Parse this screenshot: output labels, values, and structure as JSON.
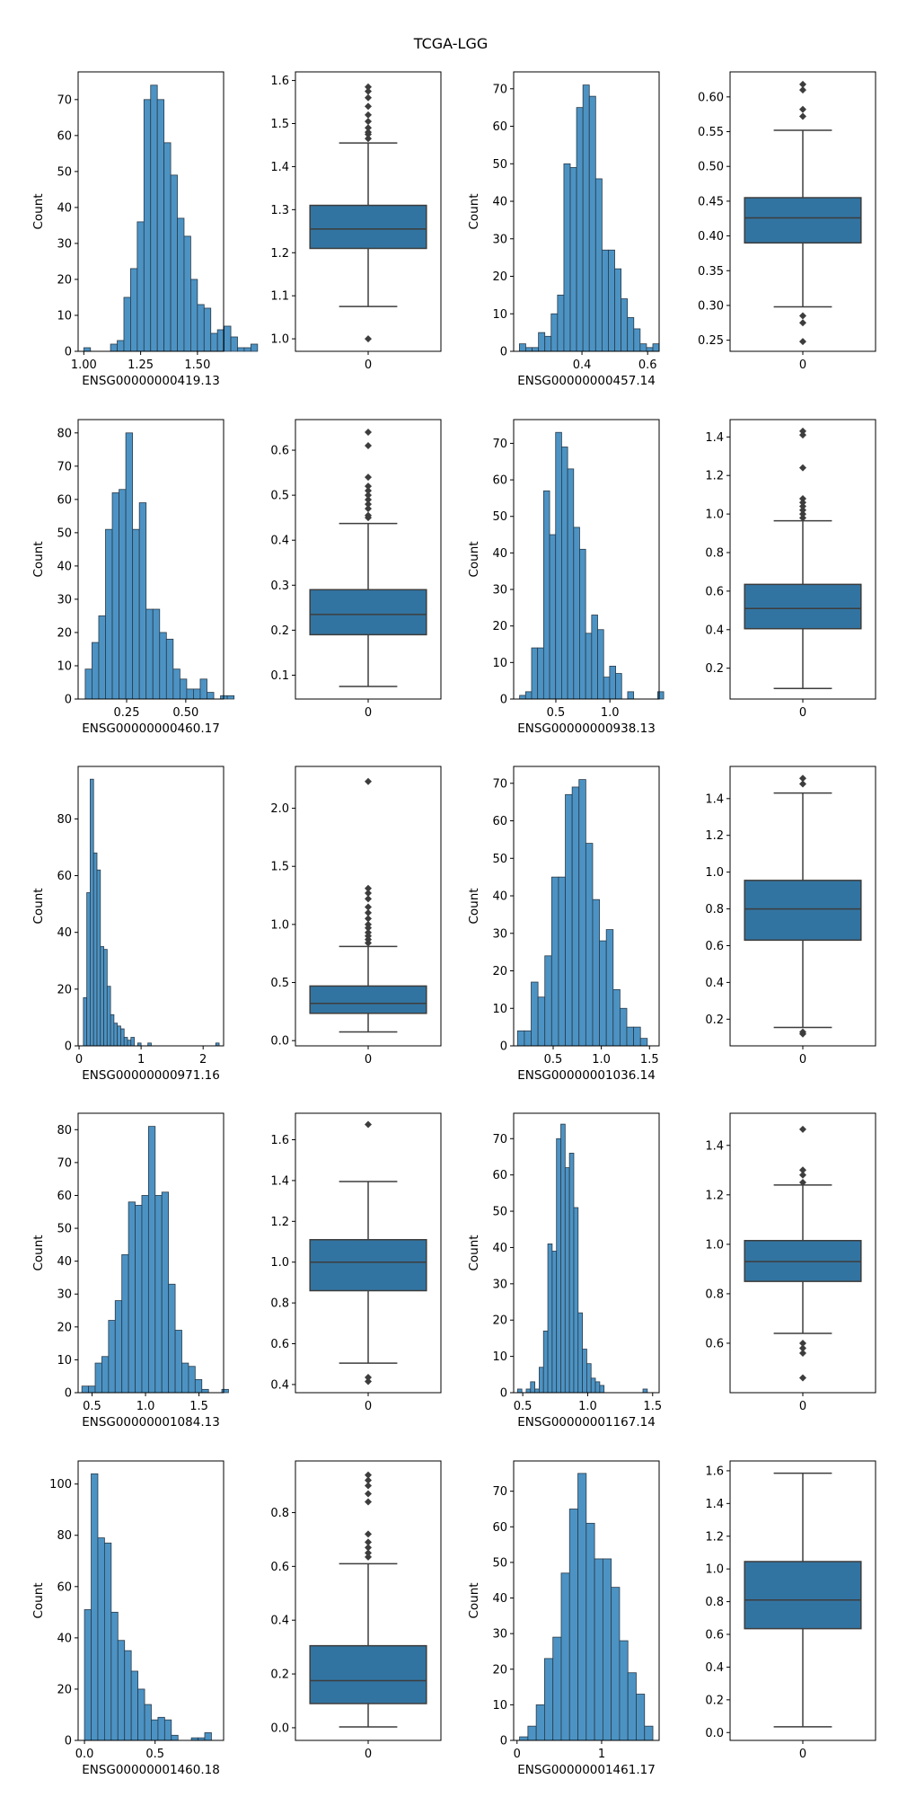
{
  "title": "TCGA-LGG",
  "colors": {
    "hist_fill": "#4C93C4",
    "hist_edge": "#2a3a48",
    "box_fill": "#3274A1",
    "box_line": "#3d3d3d",
    "frame": "#000000"
  },
  "chart_data": [
    {
      "type": "bar",
      "kind": "histogram",
      "xlabel": "ENSG00000000419.13",
      "ylabel": "Count",
      "xlim": [
        0.975,
        1.615
      ],
      "ylim": [
        0,
        77.7
      ],
      "xticks": [
        1.0,
        1.25,
        1.5
      ],
      "xtick_labels": [
        "1.00",
        "1.25",
        "1.50"
      ],
      "yticks": [
        0,
        10,
        20,
        30,
        40,
        50,
        60,
        70
      ],
      "bin_start": 1.0,
      "bin_width": 0.0294,
      "counts": [
        1,
        0,
        0,
        0,
        2,
        3,
        15,
        23,
        36,
        70,
        74,
        70,
        58,
        49,
        37,
        32,
        20,
        13,
        12,
        5,
        6,
        7,
        4,
        1,
        1,
        2
      ]
    },
    {
      "type": "box",
      "xlabel": "",
      "ylabel": "",
      "ylim": [
        0.971,
        1.62
      ],
      "yticks": [
        1.0,
        1.1,
        1.2,
        1.3,
        1.4,
        1.5,
        1.6
      ],
      "ytick_decimals": 1,
      "category": "0",
      "whisker_low": 1.075,
      "q1": 1.21,
      "median": 1.255,
      "q3": 1.31,
      "whisker_high": 1.455,
      "outliers": [
        1.0,
        1.465,
        1.475,
        1.48,
        1.49,
        1.505,
        1.52,
        1.54,
        1.56,
        1.575,
        1.585
      ]
    },
    {
      "type": "bar",
      "kind": "histogram",
      "xlabel": "ENSG00000000457.14",
      "ylabel": "Count",
      "xlim": [
        0.192,
        0.635
      ],
      "ylim": [
        0,
        74.5
      ],
      "xticks": [
        0.4,
        0.6
      ],
      "xtick_labels": [
        "0.4",
        "0.6"
      ],
      "yticks": [
        0,
        10,
        20,
        30,
        40,
        50,
        60,
        70
      ],
      "bin_start": 0.2095,
      "bin_width": 0.01935,
      "counts": [
        2,
        1,
        1,
        5,
        4,
        10,
        15,
        50,
        49,
        65,
        71,
        68,
        46,
        27,
        27,
        22,
        14,
        9,
        6,
        2,
        1,
        2
      ]
    },
    {
      "type": "box",
      "xlabel": "",
      "ylabel": "",
      "ylim": [
        0.234,
        0.636
      ],
      "yticks": [
        0.25,
        0.3,
        0.35,
        0.4,
        0.45,
        0.5,
        0.55,
        0.6
      ],
      "ytick_decimals": 2,
      "category": "0",
      "whisker_low": 0.298,
      "q1": 0.39,
      "median": 0.426,
      "q3": 0.455,
      "whisker_high": 0.552,
      "outliers": [
        0.248,
        0.275,
        0.285,
        0.572,
        0.582,
        0.61,
        0.618
      ]
    },
    {
      "type": "bar",
      "kind": "histogram",
      "xlabel": "ENSG00000000460.17",
      "ylabel": "Count",
      "xlim": [
        0.045,
        0.66
      ],
      "ylim": [
        0,
        84
      ],
      "xticks": [
        0.25,
        0.5
      ],
      "xtick_labels": [
        "0.25",
        "0.50"
      ],
      "yticks": [
        0,
        10,
        20,
        30,
        40,
        50,
        60,
        70,
        80
      ],
      "bin_start": 0.075,
      "bin_width": 0.0286,
      "counts": [
        9,
        17,
        25,
        51,
        62,
        63,
        80,
        51,
        59,
        27,
        27,
        20,
        18,
        9,
        6,
        3,
        3,
        6,
        2,
        0,
        1,
        1
      ]
    },
    {
      "type": "box",
      "xlabel": "",
      "ylabel": "",
      "ylim": [
        0.047,
        0.668
      ],
      "yticks": [
        0.1,
        0.2,
        0.3,
        0.4,
        0.5,
        0.6
      ],
      "ytick_decimals": 1,
      "category": "0",
      "whisker_low": 0.075,
      "q1": 0.19,
      "median": 0.235,
      "q3": 0.29,
      "whisker_high": 0.437,
      "outliers": [
        0.45,
        0.455,
        0.47,
        0.48,
        0.49,
        0.5,
        0.51,
        0.52,
        0.54,
        0.61,
        0.64
      ]
    },
    {
      "type": "bar",
      "kind": "histogram",
      "xlabel": "ENSG00000000938.13",
      "ylabel": "Count",
      "xlim": [
        0.11,
        1.455
      ],
      "ylim": [
        0,
        76.5
      ],
      "xticks": [
        0.5,
        1.0
      ],
      "xtick_labels": [
        "0.5",
        "1.0"
      ],
      "yticks": [
        0,
        10,
        20,
        30,
        40,
        50,
        60,
        70
      ],
      "bin_start": 0.165,
      "bin_width": 0.0555,
      "counts": [
        1,
        2,
        14,
        14,
        57,
        45,
        73,
        69,
        63,
        47,
        41,
        18,
        23,
        19,
        6,
        9,
        7,
        0,
        2,
        0,
        0,
        0,
        0,
        2
      ]
    },
    {
      "type": "box",
      "xlabel": "",
      "ylabel": "",
      "ylim": [
        0.04,
        1.49
      ],
      "yticks": [
        0.2,
        0.4,
        0.6,
        0.8,
        1.0,
        1.2,
        1.4
      ],
      "ytick_decimals": 1,
      "category": "0",
      "whisker_low": 0.095,
      "q1": 0.405,
      "median": 0.51,
      "q3": 0.635,
      "whisker_high": 0.965,
      "outliers": [
        0.98,
        1.0,
        1.02,
        1.04,
        1.06,
        1.08,
        1.24,
        1.41,
        1.43
      ]
    },
    {
      "type": "bar",
      "kind": "histogram",
      "xlabel": "ENSG00000000971.16",
      "ylabel": "Count",
      "xlim": [
        -0.015,
        2.33
      ],
      "ylim": [
        0,
        98.5
      ],
      "xticks": [
        0,
        1,
        2
      ],
      "xtick_labels": [
        "0",
        "1",
        "2"
      ],
      "yticks": [
        0,
        20,
        40,
        60,
        80
      ],
      "bin_start": 0.07,
      "bin_width": 0.0547,
      "counts": [
        17,
        54,
        94,
        68,
        62,
        35,
        34,
        21,
        11,
        8,
        7,
        6,
        3,
        2,
        3,
        0,
        1,
        0,
        0,
        1,
        0,
        0,
        0,
        0,
        0,
        0,
        0,
        0,
        0,
        0,
        0,
        0,
        0,
        0,
        0,
        0,
        0,
        0,
        0,
        1
      ]
    },
    {
      "type": "box",
      "xlabel": "",
      "ylabel": "",
      "ylim": [
        -0.045,
        2.36
      ],
      "yticks": [
        0.0,
        0.5,
        1.0,
        1.5,
        2.0
      ],
      "ytick_decimals": 1,
      "category": "0",
      "whisker_low": 0.075,
      "q1": 0.235,
      "median": 0.32,
      "q3": 0.47,
      "whisker_high": 0.81,
      "outliers": [
        0.84,
        0.87,
        0.9,
        0.93,
        0.97,
        1.0,
        1.05,
        1.1,
        1.15,
        1.22,
        1.27,
        1.31,
        2.23
      ]
    },
    {
      "type": "bar",
      "kind": "histogram",
      "xlabel": "ENSG00000001036.14",
      "ylabel": "Count",
      "xlim": [
        0.09,
        1.6
      ],
      "ylim": [
        0,
        74.5
      ],
      "xticks": [
        0.5,
        1.0,
        1.5
      ],
      "xtick_labels": [
        "0.5",
        "1.0",
        "1.5"
      ],
      "yticks": [
        0,
        10,
        20,
        30,
        40,
        50,
        60,
        70
      ],
      "bin_start": 0.13,
      "bin_width": 0.0709,
      "counts": [
        4,
        4,
        17,
        13,
        24,
        45,
        45,
        67,
        69,
        71,
        54,
        39,
        28,
        31,
        15,
        10,
        5,
        5,
        2
      ]
    },
    {
      "type": "box",
      "xlabel": "",
      "ylabel": "",
      "ylim": [
        0.055,
        1.575
      ],
      "yticks": [
        0.2,
        0.4,
        0.6,
        0.8,
        1.0,
        1.2,
        1.4
      ],
      "ytick_decimals": 1,
      "category": "0",
      "whisker_low": 0.155,
      "q1": 0.63,
      "median": 0.8,
      "q3": 0.955,
      "whisker_high": 1.43,
      "outliers": [
        0.12,
        0.13,
        1.48,
        1.51
      ]
    },
    {
      "type": "bar",
      "kind": "histogram",
      "xlabel": "ENSG00000001084.13",
      "ylabel": "Count",
      "xlim": [
        0.37,
        1.73
      ],
      "ylim": [
        0,
        85
      ],
      "xticks": [
        0.5,
        1.0,
        1.5
      ],
      "xtick_labels": [
        "0.5",
        "1.0",
        "1.5"
      ],
      "yticks": [
        0,
        10,
        20,
        30,
        40,
        50,
        60,
        70,
        80
      ],
      "bin_start": 0.405,
      "bin_width": 0.0623,
      "counts": [
        2,
        2,
        9,
        11,
        22,
        28,
        42,
        58,
        57,
        60,
        81,
        60,
        61,
        33,
        19,
        9,
        8,
        4,
        1,
        0,
        0,
        1
      ]
    },
    {
      "type": "box",
      "xlabel": "",
      "ylabel": "",
      "ylim": [
        0.36,
        1.73
      ],
      "yticks": [
        0.4,
        0.6,
        0.8,
        1.0,
        1.2,
        1.4,
        1.6
      ],
      "ytick_decimals": 1,
      "category": "0",
      "whisker_low": 0.505,
      "q1": 0.86,
      "median": 1.0,
      "q3": 1.11,
      "whisker_high": 1.395,
      "outliers": [
        0.415,
        0.435,
        1.675
      ]
    },
    {
      "type": "bar",
      "kind": "histogram",
      "xlabel": "ENSG00000001167.14",
      "ylabel": "Count",
      "xlim": [
        0.43,
        1.55
      ],
      "ylim": [
        0,
        77
      ],
      "xticks": [
        0.5,
        1.0,
        1.5
      ],
      "xtick_labels": [
        "0.5",
        "1.0",
        "1.5"
      ],
      "yticks": [
        0,
        10,
        20,
        30,
        40,
        50,
        60,
        70
      ],
      "bin_start": 0.46,
      "bin_width": 0.0333,
      "counts": [
        1,
        0,
        1,
        3,
        1,
        7,
        17,
        41,
        39,
        70,
        74,
        62,
        66,
        51,
        22,
        12,
        8,
        4,
        3,
        2,
        0,
        0,
        0,
        0,
        0,
        0,
        0,
        0,
        0,
        1
      ]
    },
    {
      "type": "box",
      "xlabel": "",
      "ylabel": "",
      "ylim": [
        0.4,
        1.53
      ],
      "yticks": [
        0.6,
        0.8,
        1.0,
        1.2,
        1.4
      ],
      "ytick_decimals": 1,
      "category": "0",
      "whisker_low": 0.64,
      "q1": 0.85,
      "median": 0.93,
      "q3": 1.015,
      "whisker_high": 1.24,
      "outliers": [
        0.46,
        0.56,
        0.58,
        0.6,
        1.25,
        1.28,
        1.3,
        1.465
      ]
    },
    {
      "type": "bar",
      "kind": "histogram",
      "xlabel": "ENSG00000001460.18",
      "ylabel": "Count",
      "xlim": [
        -0.045,
        0.985
      ],
      "ylim": [
        0,
        109
      ],
      "xticks": [
        0.0,
        0.5
      ],
      "xtick_labels": [
        "0.0",
        "0.5"
      ],
      "yticks": [
        0,
        20,
        40,
        60,
        80,
        100
      ],
      "bin_start": 0.0,
      "bin_width": 0.0473,
      "counts": [
        51,
        104,
        79,
        77,
        50,
        39,
        35,
        27,
        20,
        14,
        8,
        9,
        8,
        2,
        0,
        0,
        1,
        1,
        3
      ]
    },
    {
      "type": "box",
      "xlabel": "",
      "ylabel": "",
      "ylim": [
        -0.047,
        0.992
      ],
      "yticks": [
        0.0,
        0.2,
        0.4,
        0.6,
        0.8
      ],
      "ytick_decimals": 1,
      "category": "0",
      "whisker_low": 0.003,
      "q1": 0.09,
      "median": 0.175,
      "q3": 0.305,
      "whisker_high": 0.61,
      "outliers": [
        0.635,
        0.65,
        0.67,
        0.69,
        0.72,
        0.84,
        0.87,
        0.9,
        0.92,
        0.94
      ]
    },
    {
      "type": "bar",
      "kind": "histogram",
      "xlabel": "ENSG00000001461.17",
      "ylabel": "Count",
      "xlim": [
        -0.04,
        1.68
      ],
      "ylim": [
        0,
        78.5
      ],
      "xticks": [
        0,
        1
      ],
      "xtick_labels": [
        "0",
        "1"
      ],
      "yticks": [
        0,
        10,
        20,
        30,
        40,
        50,
        60,
        70
      ],
      "bin_start": 0.03,
      "bin_width": 0.0985,
      "counts": [
        1,
        4,
        10,
        23,
        29,
        47,
        65,
        75,
        61,
        51,
        51,
        43,
        28,
        19,
        13,
        4
      ]
    },
    {
      "type": "box",
      "xlabel": "",
      "ylabel": "",
      "ylim": [
        -0.048,
        1.66
      ],
      "yticks": [
        0.0,
        0.2,
        0.4,
        0.6,
        0.8,
        1.0,
        1.2,
        1.4,
        1.6
      ],
      "ytick_decimals": 1,
      "category": "0",
      "whisker_low": 0.035,
      "q1": 0.635,
      "median": 0.81,
      "q3": 1.045,
      "whisker_high": 1.585,
      "outliers": []
    }
  ]
}
